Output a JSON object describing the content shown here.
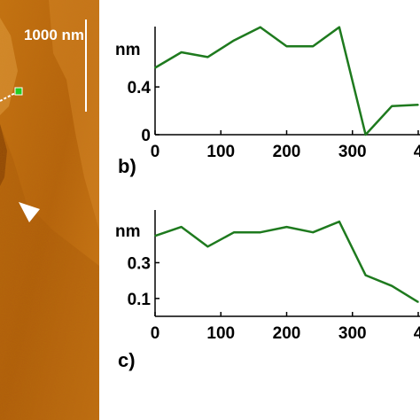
{
  "image": {
    "scale_bar_label": "1000 nm",
    "colors": {
      "afm_dark": "#8a3e06",
      "afm_mid": "#b8650f",
      "afm_light": "#e09a3a",
      "marker": "#22cc22",
      "line": "#1e7a1e"
    }
  },
  "panels": {
    "b_label": "b)",
    "c_label": "c)"
  },
  "chart_data": [
    {
      "type": "line",
      "panel": "b)",
      "ylabel": "nm",
      "xticks": [
        "0",
        "100",
        "200",
        "300",
        "4"
      ],
      "yticks": [
        "0.4",
        "0"
      ],
      "xlim": [
        0,
        400
      ],
      "ylim": [
        0,
        0.95
      ],
      "x": [
        0,
        40,
        80,
        120,
        160,
        200,
        240,
        280,
        320,
        360,
        400
      ],
      "values": [
        0.56,
        0.69,
        0.65,
        0.79,
        0.9,
        0.74,
        0.74,
        0.9,
        0.0,
        0.24,
        0.25
      ],
      "color": "#1e7a1e"
    },
    {
      "type": "line",
      "panel": "c)",
      "ylabel": "nm",
      "xticks": [
        "0",
        "100",
        "200",
        "300",
        "4"
      ],
      "yticks": [
        "0.3",
        "0.1"
      ],
      "xlim": [
        0,
        400
      ],
      "ylim": [
        0,
        0.57
      ],
      "x": [
        0,
        40,
        80,
        120,
        160,
        200,
        240,
        280,
        320,
        360,
        400
      ],
      "values": [
        0.45,
        0.5,
        0.39,
        0.47,
        0.47,
        0.5,
        0.47,
        0.53,
        0.23,
        0.17,
        0.08
      ],
      "color": "#1e7a1e"
    }
  ]
}
